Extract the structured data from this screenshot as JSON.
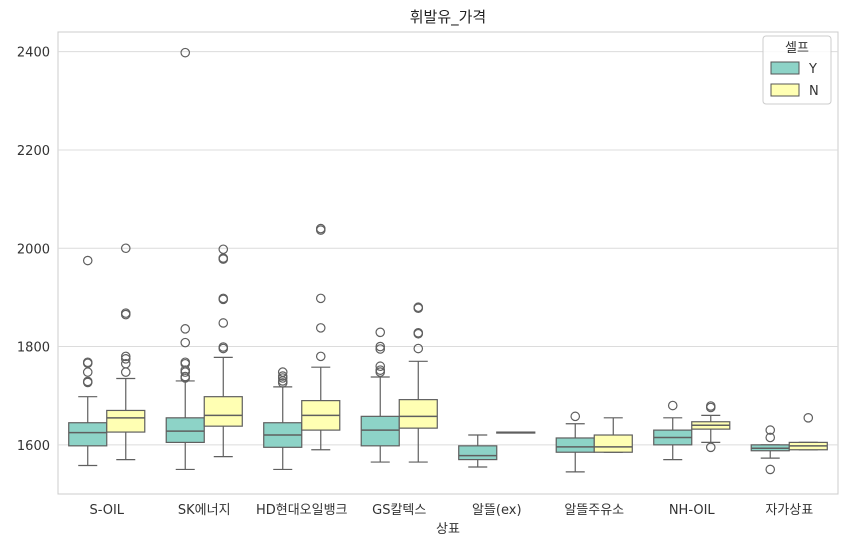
{
  "chart_data": {
    "type": "box",
    "title": "휘발유_가격",
    "xlabel": "상표",
    "ylabel": "",
    "ylim": [
      1500,
      2440
    ],
    "yticks": [
      1600,
      1800,
      2000,
      2200,
      2400
    ],
    "grid": true,
    "categories": [
      "S-OIL",
      "SK에너지",
      "HD현대오일뱅크",
      "GS칼텍스",
      "알뜰(ex)",
      "알뜰주유소",
      "NH-OIL",
      "자가상표"
    ],
    "legend": {
      "title": "셀프",
      "placement": "top-right",
      "entries": [
        {
          "name": "Y",
          "color": "#8dd3c7"
        },
        {
          "name": "N",
          "color": "#ffffb3"
        }
      ]
    },
    "series": [
      {
        "name": "Y",
        "color": "#8dd3c7",
        "boxes": [
          {
            "whislo": 1558,
            "q1": 1598,
            "med": 1625,
            "q3": 1645,
            "whishi": 1698,
            "fliers": [
              1727,
              1729,
              1748,
              1766,
              1768,
              1975
            ]
          },
          {
            "whislo": 1550,
            "q1": 1605,
            "med": 1628,
            "q3": 1655,
            "whishi": 1730,
            "fliers": [
              1736,
              1739,
              1748,
              1752,
              1765,
              1768,
              1808,
              1836,
              2398
            ]
          },
          {
            "whislo": 1550,
            "q1": 1595,
            "med": 1620,
            "q3": 1645,
            "whishi": 1718,
            "fliers": [
              1726,
              1730,
              1736,
              1740,
              1748
            ]
          },
          {
            "whislo": 1565,
            "q1": 1598,
            "med": 1630,
            "q3": 1658,
            "whishi": 1738,
            "fliers": [
              1748,
              1752,
              1760,
              1795,
              1800,
              1829
            ]
          },
          {
            "whislo": 1555,
            "q1": 1570,
            "med": 1578,
            "q3": 1598,
            "whishi": 1620,
            "fliers": []
          },
          {
            "whislo": 1545,
            "q1": 1585,
            "med": 1596,
            "q3": 1614,
            "whishi": 1643,
            "fliers": [
              1658
            ]
          },
          {
            "whislo": 1570,
            "q1": 1600,
            "med": 1615,
            "q3": 1630,
            "whishi": 1655,
            "fliers": [
              1680
            ]
          },
          {
            "whislo": 1573,
            "q1": 1588,
            "med": 1593,
            "q3": 1600,
            "whishi": 1600,
            "fliers": [
              1550,
              1615,
              1630
            ]
          }
        ]
      },
      {
        "name": "N",
        "color": "#ffffb3",
        "boxes": [
          {
            "whislo": 1570,
            "q1": 1626,
            "med": 1655,
            "q3": 1670,
            "whishi": 1735,
            "fliers": [
              1748,
              1765,
              1775,
              1780,
              1865,
              1868,
              2000
            ]
          },
          {
            "whislo": 1576,
            "q1": 1638,
            "med": 1660,
            "q3": 1698,
            "whishi": 1778,
            "fliers": [
              1796,
              1799,
              1848,
              1896,
              1898,
              1978,
              1980,
              1998
            ]
          },
          {
            "whislo": 1590,
            "q1": 1630,
            "med": 1660,
            "q3": 1690,
            "whishi": 1758,
            "fliers": [
              1780,
              1838,
              1898,
              2037,
              2040
            ]
          },
          {
            "whislo": 1565,
            "q1": 1634,
            "med": 1658,
            "q3": 1692,
            "whishi": 1770,
            "fliers": [
              1796,
              1826,
              1828,
              1878,
              1880
            ]
          },
          {
            "whislo": 1625,
            "q1": 1625,
            "med": 1625,
            "q3": 1626,
            "whishi": 1626,
            "fliers": []
          },
          {
            "whislo": 1585,
            "q1": 1585,
            "med": 1596,
            "q3": 1620,
            "whishi": 1655,
            "fliers": []
          },
          {
            "whislo": 1605,
            "q1": 1632,
            "med": 1640,
            "q3": 1647,
            "whishi": 1660,
            "fliers": [
              1595,
              1676,
              1679
            ]
          },
          {
            "whislo": 1590,
            "q1": 1590,
            "med": 1598,
            "q3": 1605,
            "whishi": 1605,
            "fliers": [
              1655
            ]
          }
        ]
      }
    ]
  }
}
